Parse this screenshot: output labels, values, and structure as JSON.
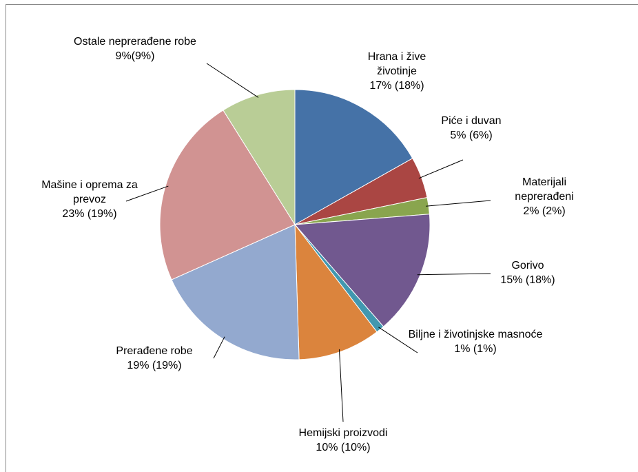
{
  "chart_data": {
    "type": "pie",
    "categories": [
      "Hrana i žive životinje",
      "Piće i duvan",
      "Materijali neprerađeni",
      "Gorivo",
      "Biljne i životinjske masnoće",
      "Hemijski proizvodi",
      "Prerađene robe",
      "Mašine i oprema za prevoz",
      "Ostale neprerađene robe"
    ],
    "values": [
      17,
      5,
      2,
      15,
      1,
      10,
      19,
      23,
      9
    ],
    "value_labels": [
      "17% (18%)",
      "5% (6%)",
      "2% (2%)",
      "15% (18%)",
      "1% (1%)",
      "10% (10%)",
      "19% (19%)",
      "23% (19%)",
      "9%(9%)"
    ],
    "colors": [
      "#4572a7",
      "#aa4643",
      "#89a54e",
      "#71588f",
      "#4198af",
      "#db843d",
      "#93a9cf",
      "#d19392",
      "#b9cd96"
    ]
  }
}
